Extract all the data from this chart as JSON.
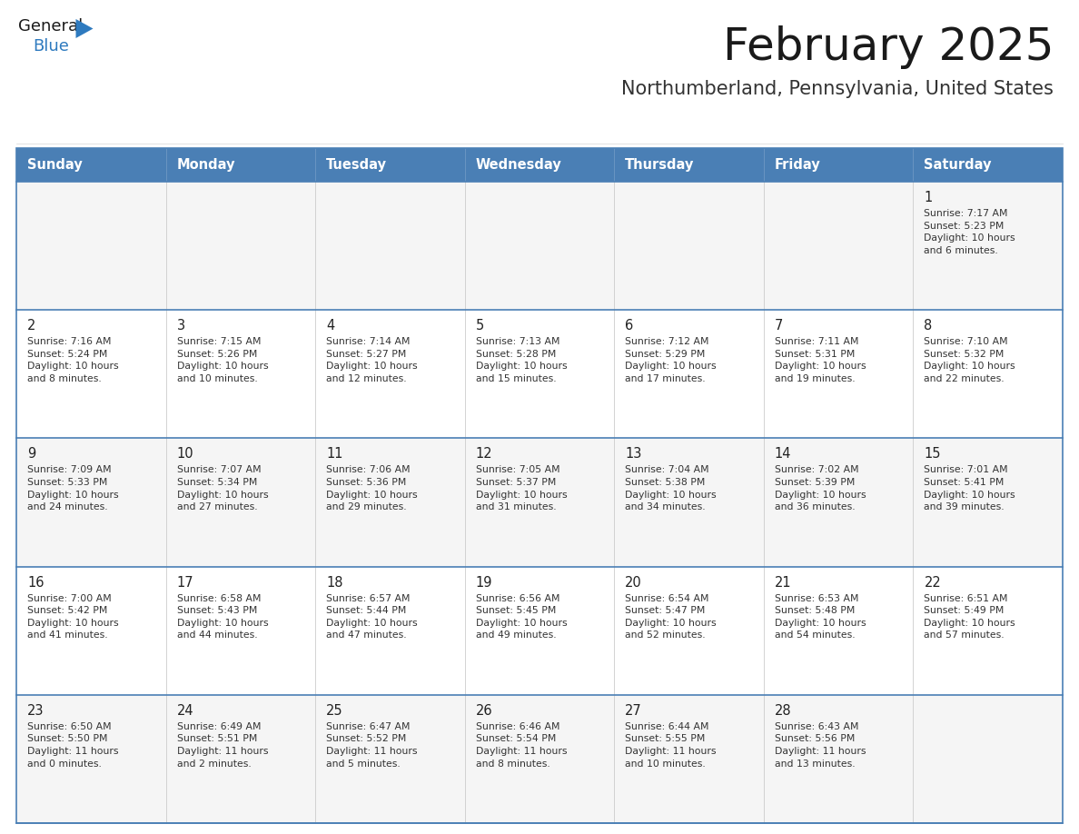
{
  "title": "February 2025",
  "subtitle": "Northumberland, Pennsylvania, United States",
  "header_bg": "#4a7fb5",
  "header_text_color": "#ffffff",
  "row_bg_light": "#f5f5f5",
  "row_bg_white": "#ffffff",
  "border_color": "#4a7fb5",
  "cell_border_color": "#b0b8c8",
  "text_dark": "#222222",
  "text_info": "#333333",
  "days_of_week": [
    "Sunday",
    "Monday",
    "Tuesday",
    "Wednesday",
    "Thursday",
    "Friday",
    "Saturday"
  ],
  "calendar": [
    [
      {
        "day": "",
        "info": ""
      },
      {
        "day": "",
        "info": ""
      },
      {
        "day": "",
        "info": ""
      },
      {
        "day": "",
        "info": ""
      },
      {
        "day": "",
        "info": ""
      },
      {
        "day": "",
        "info": ""
      },
      {
        "day": "1",
        "info": "Sunrise: 7:17 AM\nSunset: 5:23 PM\nDaylight: 10 hours\nand 6 minutes."
      }
    ],
    [
      {
        "day": "2",
        "info": "Sunrise: 7:16 AM\nSunset: 5:24 PM\nDaylight: 10 hours\nand 8 minutes."
      },
      {
        "day": "3",
        "info": "Sunrise: 7:15 AM\nSunset: 5:26 PM\nDaylight: 10 hours\nand 10 minutes."
      },
      {
        "day": "4",
        "info": "Sunrise: 7:14 AM\nSunset: 5:27 PM\nDaylight: 10 hours\nand 12 minutes."
      },
      {
        "day": "5",
        "info": "Sunrise: 7:13 AM\nSunset: 5:28 PM\nDaylight: 10 hours\nand 15 minutes."
      },
      {
        "day": "6",
        "info": "Sunrise: 7:12 AM\nSunset: 5:29 PM\nDaylight: 10 hours\nand 17 minutes."
      },
      {
        "day": "7",
        "info": "Sunrise: 7:11 AM\nSunset: 5:31 PM\nDaylight: 10 hours\nand 19 minutes."
      },
      {
        "day": "8",
        "info": "Sunrise: 7:10 AM\nSunset: 5:32 PM\nDaylight: 10 hours\nand 22 minutes."
      }
    ],
    [
      {
        "day": "9",
        "info": "Sunrise: 7:09 AM\nSunset: 5:33 PM\nDaylight: 10 hours\nand 24 minutes."
      },
      {
        "day": "10",
        "info": "Sunrise: 7:07 AM\nSunset: 5:34 PM\nDaylight: 10 hours\nand 27 minutes."
      },
      {
        "day": "11",
        "info": "Sunrise: 7:06 AM\nSunset: 5:36 PM\nDaylight: 10 hours\nand 29 minutes."
      },
      {
        "day": "12",
        "info": "Sunrise: 7:05 AM\nSunset: 5:37 PM\nDaylight: 10 hours\nand 31 minutes."
      },
      {
        "day": "13",
        "info": "Sunrise: 7:04 AM\nSunset: 5:38 PM\nDaylight: 10 hours\nand 34 minutes."
      },
      {
        "day": "14",
        "info": "Sunrise: 7:02 AM\nSunset: 5:39 PM\nDaylight: 10 hours\nand 36 minutes."
      },
      {
        "day": "15",
        "info": "Sunrise: 7:01 AM\nSunset: 5:41 PM\nDaylight: 10 hours\nand 39 minutes."
      }
    ],
    [
      {
        "day": "16",
        "info": "Sunrise: 7:00 AM\nSunset: 5:42 PM\nDaylight: 10 hours\nand 41 minutes."
      },
      {
        "day": "17",
        "info": "Sunrise: 6:58 AM\nSunset: 5:43 PM\nDaylight: 10 hours\nand 44 minutes."
      },
      {
        "day": "18",
        "info": "Sunrise: 6:57 AM\nSunset: 5:44 PM\nDaylight: 10 hours\nand 47 minutes."
      },
      {
        "day": "19",
        "info": "Sunrise: 6:56 AM\nSunset: 5:45 PM\nDaylight: 10 hours\nand 49 minutes."
      },
      {
        "day": "20",
        "info": "Sunrise: 6:54 AM\nSunset: 5:47 PM\nDaylight: 10 hours\nand 52 minutes."
      },
      {
        "day": "21",
        "info": "Sunrise: 6:53 AM\nSunset: 5:48 PM\nDaylight: 10 hours\nand 54 minutes."
      },
      {
        "day": "22",
        "info": "Sunrise: 6:51 AM\nSunset: 5:49 PM\nDaylight: 10 hours\nand 57 minutes."
      }
    ],
    [
      {
        "day": "23",
        "info": "Sunrise: 6:50 AM\nSunset: 5:50 PM\nDaylight: 11 hours\nand 0 minutes."
      },
      {
        "day": "24",
        "info": "Sunrise: 6:49 AM\nSunset: 5:51 PM\nDaylight: 11 hours\nand 2 minutes."
      },
      {
        "day": "25",
        "info": "Sunrise: 6:47 AM\nSunset: 5:52 PM\nDaylight: 11 hours\nand 5 minutes."
      },
      {
        "day": "26",
        "info": "Sunrise: 6:46 AM\nSunset: 5:54 PM\nDaylight: 11 hours\nand 8 minutes."
      },
      {
        "day": "27",
        "info": "Sunrise: 6:44 AM\nSunset: 5:55 PM\nDaylight: 11 hours\nand 10 minutes."
      },
      {
        "day": "28",
        "info": "Sunrise: 6:43 AM\nSunset: 5:56 PM\nDaylight: 11 hours\nand 13 minutes."
      },
      {
        "day": "",
        "info": ""
      }
    ]
  ],
  "logo_general_color": "#1a1a1a",
  "logo_blue_color": "#2e7abf",
  "logo_triangle_color": "#2e7abf"
}
